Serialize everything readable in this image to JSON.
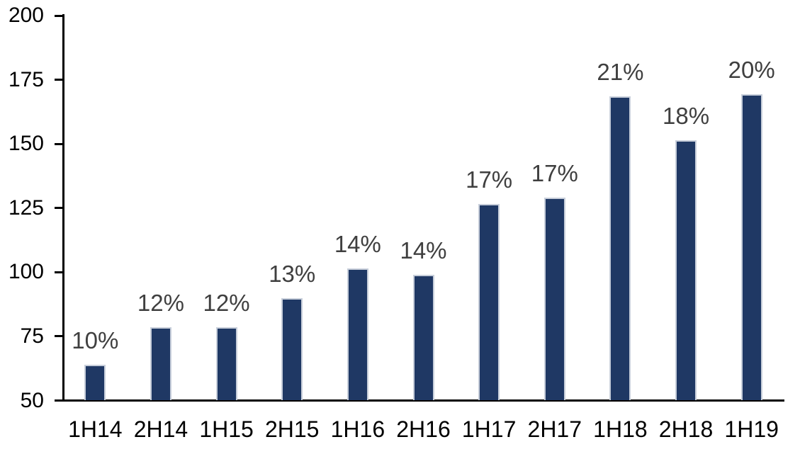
{
  "chart_data": {
    "type": "bar",
    "title": "",
    "xlabel": "",
    "ylabel": "",
    "categories": [
      "1H14",
      "2H14",
      "1H15",
      "2H15",
      "1H16",
      "2H16",
      "1H17",
      "2H17",
      "1H18",
      "2H18",
      "1H19"
    ],
    "values": [
      64,
      78.5,
      78.5,
      90,
      101.5,
      99,
      126.5,
      129,
      168.5,
      151.5,
      169.5
    ],
    "bar_labels": [
      "10%",
      "12%",
      "12%",
      "13%",
      "14%",
      "14%",
      "17%",
      "17%",
      "21%",
      "18%",
      "20%"
    ],
    "ylim": [
      50,
      200
    ],
    "yticks": [
      50,
      75,
      100,
      125,
      150,
      175,
      200
    ],
    "grid": false,
    "legend": false,
    "colors": {
      "bar_fill": "#1F3864",
      "bar_border": "#C7CEDA",
      "bar_label_text": "#3F3F3F",
      "axis_text": "#000000",
      "axis_line": "#000000",
      "background": "#FFFFFF"
    }
  }
}
